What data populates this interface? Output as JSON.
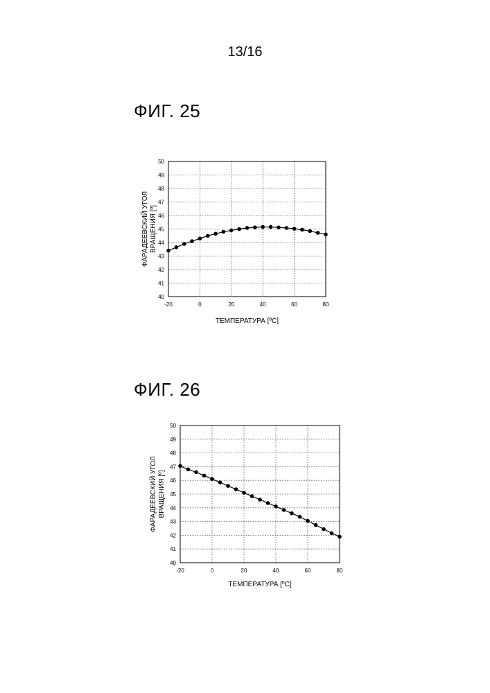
{
  "page": {
    "number": "13/16"
  },
  "figures": [
    {
      "title": "ФИГ. 25"
    },
    {
      "title": "ФИГ. 26"
    }
  ],
  "chart_data": [
    {
      "type": "line",
      "title": "ФИГ. 25",
      "xlabel": "ТЕМПЕРАТУРА [ºC]",
      "ylabel_lines": [
        "ФАРАДЕЕВСКИЙ УГОЛ",
        "ВРАЩЕНИЯ [º]"
      ],
      "xlim": [
        -20,
        80
      ],
      "ylim": [
        40,
        50
      ],
      "xticks": [
        -20,
        0,
        20,
        40,
        60,
        80
      ],
      "yticks": [
        40,
        41,
        42,
        43,
        44,
        45,
        46,
        47,
        48,
        49,
        50
      ],
      "grid": true,
      "x": [
        -20,
        -15,
        -10,
        -5,
        0,
        5,
        10,
        15,
        20,
        25,
        30,
        35,
        40,
        45,
        50,
        55,
        60,
        65,
        70,
        75,
        80
      ],
      "y": [
        43.4,
        43.65,
        43.9,
        44.1,
        44.3,
        44.5,
        44.65,
        44.8,
        44.9,
        45.0,
        45.08,
        45.12,
        45.15,
        45.15,
        45.12,
        45.08,
        45.02,
        44.95,
        44.85,
        44.72,
        44.6
      ]
    },
    {
      "type": "line",
      "title": "ФИГ. 26",
      "xlabel": "ТЕМПЕРАТУРА [ºC]",
      "ylabel_lines": [
        "ФАРАДЕЕВСКИЙ УГОЛ",
        "ВРАЩЕНИЯ [º]"
      ],
      "xlim": [
        -20,
        80
      ],
      "ylim": [
        40,
        50
      ],
      "xticks": [
        -20,
        0,
        20,
        40,
        60,
        80
      ],
      "yticks": [
        40,
        41,
        42,
        43,
        44,
        45,
        46,
        47,
        48,
        49,
        50
      ],
      "grid": true,
      "x": [
        -20,
        -15,
        -10,
        -5,
        0,
        5,
        10,
        15,
        20,
        25,
        30,
        35,
        40,
        45,
        50,
        55,
        60,
        65,
        70,
        75,
        80
      ],
      "y": [
        47.05,
        46.8,
        46.6,
        46.35,
        46.1,
        45.85,
        45.6,
        45.35,
        45.1,
        44.85,
        44.6,
        44.35,
        44.1,
        43.85,
        43.6,
        43.35,
        43.05,
        42.75,
        42.45,
        42.15,
        41.9
      ]
    }
  ]
}
